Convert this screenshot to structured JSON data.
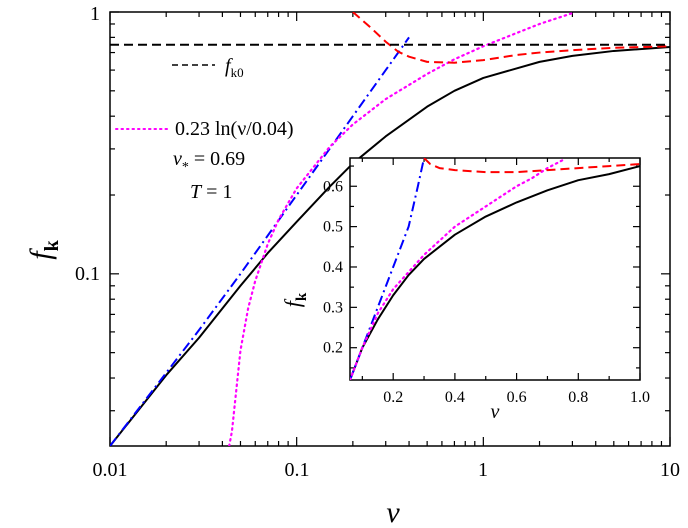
{
  "chart_data": [
    {
      "panel": "main",
      "type": "line",
      "x_scale": "log",
      "y_scale": "log",
      "xlim": [
        0.01,
        10
      ],
      "ylim": [
        0.022,
        1
      ],
      "xlabel": "ν",
      "ylabel_base": "f",
      "ylabel_sub": "k",
      "x_ticks": [
        0.01,
        0.1,
        1,
        10
      ],
      "x_tick_labels": [
        "0.01",
        "0.1",
        "1",
        "10"
      ],
      "y_ticks": [
        0.1,
        1
      ],
      "y_tick_labels": [
        "0.1",
        "1"
      ],
      "legend": {
        "fk0": {
          "base": "f",
          "sub": "k0"
        },
        "log_fit": "0.23 ln(ν/0.04)",
        "nu_star": {
          "base": "ν",
          "sub": "*",
          "rest": " = 0.69"
        },
        "T": {
          "base": "T",
          "rest": " = 1"
        }
      },
      "series": [
        {
          "color": "#000000",
          "style": "solid",
          "x": [
            0.01,
            0.02,
            0.03,
            0.05,
            0.07,
            0.1,
            0.15,
            0.2,
            0.3,
            0.5,
            0.7,
            1,
            2,
            3,
            5,
            10
          ],
          "y": [
            0.022,
            0.041,
            0.057,
            0.09,
            0.12,
            0.158,
            0.215,
            0.264,
            0.335,
            0.435,
            0.5,
            0.56,
            0.645,
            0.68,
            0.71,
            0.735
          ]
        },
        {
          "color": "#0000ff",
          "style": "dash-dot",
          "x": [
            0.01,
            0.03,
            0.05,
            0.1,
            0.15,
            0.2,
            0.3,
            0.4
          ],
          "y": [
            0.022,
            0.061,
            0.1,
            0.2,
            0.3,
            0.4,
            0.6,
            0.8
          ]
        },
        {
          "color": "#ff00ff",
          "style": "dot",
          "x": [
            0.0435,
            0.045,
            0.05,
            0.055,
            0.06,
            0.07,
            0.08,
            0.1,
            0.15,
            0.2,
            0.3,
            0.5,
            0.7,
            1,
            1.5,
            2,
            3
          ],
          "y": [
            0.022,
            0.025,
            0.051,
            0.074,
            0.094,
            0.13,
            0.161,
            0.212,
            0.305,
            0.372,
            0.465,
            0.58,
            0.66,
            0.74,
            0.83,
            0.9,
            0.99
          ]
        },
        {
          "color": "#ff0000",
          "style": "dash",
          "x": [
            0.2,
            0.25,
            0.3,
            0.35,
            0.4,
            0.5,
            0.7,
            1,
            1.5,
            2,
            3,
            5,
            10
          ],
          "y": [
            1.0,
            0.87,
            0.77,
            0.705,
            0.675,
            0.645,
            0.64,
            0.655,
            0.685,
            0.7,
            0.715,
            0.73,
            0.74
          ]
        },
        {
          "color": "#000000",
          "style": "dash",
          "x": [
            0.01,
            10
          ],
          "y": [
            0.75,
            0.75
          ]
        }
      ]
    },
    {
      "panel": "inset",
      "type": "line",
      "x_scale": "linear",
      "y_scale": "linear",
      "xlim": [
        0.06,
        1.0
      ],
      "ylim": [
        0.12,
        0.67
      ],
      "xlabel": "ν",
      "ylabel_base": "f",
      "ylabel_sub": "k",
      "x_ticks": [
        0.2,
        0.4,
        0.6,
        0.8,
        1.0
      ],
      "x_tick_labels": [
        "0.2",
        "0.4",
        "0.6",
        "0.8",
        "1.0"
      ],
      "y_ticks": [
        0.2,
        0.3,
        0.4,
        0.5,
        0.6
      ],
      "y_tick_labels": [
        "0.2",
        "0.3",
        "0.4",
        "0.5",
        "0.6"
      ],
      "series": [
        {
          "color": "#000000",
          "style": "solid",
          "x": [
            0.06,
            0.08,
            0.1,
            0.15,
            0.2,
            0.25,
            0.3,
            0.4,
            0.5,
            0.6,
            0.7,
            0.8,
            0.9,
            1.0
          ],
          "y": [
            0.12,
            0.16,
            0.2,
            0.27,
            0.33,
            0.38,
            0.42,
            0.48,
            0.525,
            0.56,
            0.59,
            0.615,
            0.63,
            0.65
          ]
        },
        {
          "color": "#0000ff",
          "style": "dash-dot",
          "x": [
            0.06,
            0.1,
            0.15,
            0.2,
            0.25,
            0.28,
            0.3
          ],
          "y": [
            0.12,
            0.2,
            0.3,
            0.4,
            0.5,
            0.6,
            0.67
          ]
        },
        {
          "color": "#ff00ff",
          "style": "dot",
          "x": [
            0.06,
            0.1,
            0.15,
            0.2,
            0.3,
            0.4,
            0.5,
            0.6,
            0.65,
            0.7,
            0.75
          ],
          "y": [
            0.12,
            0.2,
            0.285,
            0.345,
            0.43,
            0.5,
            0.55,
            0.6,
            0.62,
            0.645,
            0.665
          ]
        },
        {
          "color": "#ff0000",
          "style": "dash",
          "x": [
            0.3,
            0.32,
            0.35,
            0.4,
            0.5,
            0.6,
            0.7,
            0.8,
            0.9,
            1.0
          ],
          "y": [
            0.67,
            0.655,
            0.645,
            0.64,
            0.635,
            0.635,
            0.64,
            0.645,
            0.65,
            0.655
          ]
        }
      ]
    }
  ]
}
